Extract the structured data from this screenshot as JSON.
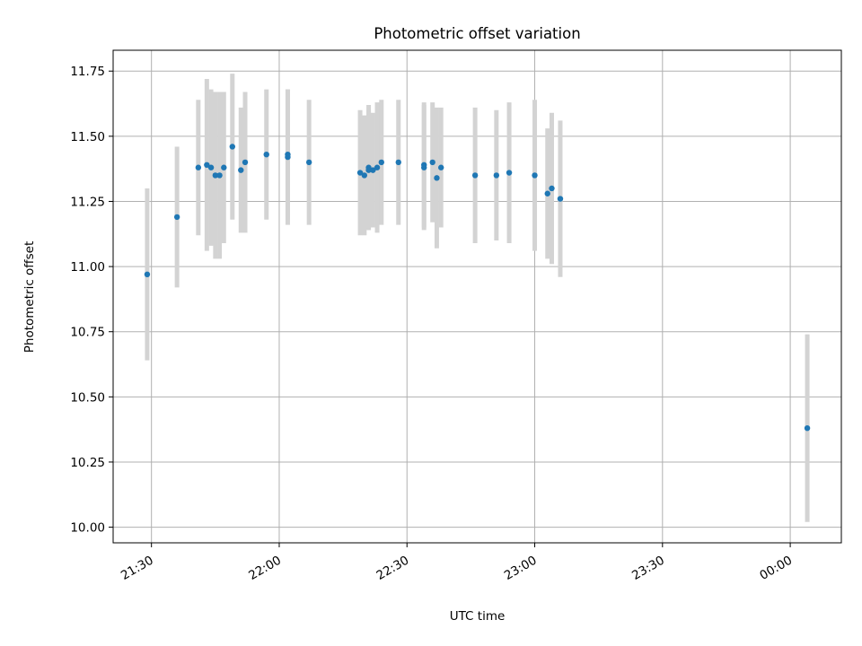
{
  "chart_data": {
    "type": "scatter",
    "title": "Photometric offset variation",
    "xlabel": "UTC time",
    "ylabel": "Photometric offset",
    "x_ticks": [
      "21:30",
      "22:00",
      "22:30",
      "23:00",
      "23:30",
      "00:00"
    ],
    "y_ticks": [
      "10.00",
      "10.25",
      "10.50",
      "10.75",
      "11.00",
      "11.25",
      "11.50",
      "11.75"
    ],
    "xlim": [
      "21:21",
      "00:12"
    ],
    "ylim": [
      9.94,
      11.83
    ],
    "grid": true,
    "colors": {
      "points": "#1f77b4",
      "errorbars": "#d3d3d3",
      "grid": "#b0b0b0"
    },
    "points": [
      {
        "time": "21:29",
        "y": 10.97,
        "err": 0.33
      },
      {
        "time": "21:36",
        "y": 11.19,
        "err": 0.27
      },
      {
        "time": "21:41",
        "y": 11.38,
        "err": 0.26
      },
      {
        "time": "21:43",
        "y": 11.39,
        "err": 0.33
      },
      {
        "time": "21:44",
        "y": 11.38,
        "err": 0.3
      },
      {
        "time": "21:45",
        "y": 11.35,
        "err": 0.32
      },
      {
        "time": "21:46",
        "y": 11.35,
        "err": 0.32
      },
      {
        "time": "21:47",
        "y": 11.38,
        "err": 0.29
      },
      {
        "time": "21:49",
        "y": 11.46,
        "err": 0.28
      },
      {
        "time": "21:51",
        "y": 11.37,
        "err": 0.24
      },
      {
        "time": "21:52",
        "y": 11.4,
        "err": 0.27
      },
      {
        "time": "21:57",
        "y": 11.43,
        "err": 0.25
      },
      {
        "time": "22:02",
        "y": 11.43,
        "err": 0.25
      },
      {
        "time": "22:02",
        "y": 11.42,
        "err": 0.26
      },
      {
        "time": "22:07",
        "y": 11.4,
        "err": 0.24
      },
      {
        "time": "22:19",
        "y": 11.36,
        "err": 0.24
      },
      {
        "time": "22:20",
        "y": 11.35,
        "err": 0.23
      },
      {
        "time": "22:21",
        "y": 11.38,
        "err": 0.24
      },
      {
        "time": "22:21",
        "y": 11.37,
        "err": 0.23
      },
      {
        "time": "22:22",
        "y": 11.37,
        "err": 0.22
      },
      {
        "time": "22:23",
        "y": 11.38,
        "err": 0.25
      },
      {
        "time": "22:24",
        "y": 11.4,
        "err": 0.24
      },
      {
        "time": "22:28",
        "y": 11.4,
        "err": 0.24
      },
      {
        "time": "22:34",
        "y": 11.39,
        "err": 0.24
      },
      {
        "time": "22:34",
        "y": 11.38,
        "err": 0.24
      },
      {
        "time": "22:36",
        "y": 11.4,
        "err": 0.23
      },
      {
        "time": "22:37",
        "y": 11.34,
        "err": 0.27
      },
      {
        "time": "22:38",
        "y": 11.38,
        "err": 0.23
      },
      {
        "time": "22:46",
        "y": 11.35,
        "err": 0.26
      },
      {
        "time": "22:51",
        "y": 11.35,
        "err": 0.25
      },
      {
        "time": "22:54",
        "y": 11.36,
        "err": 0.27
      },
      {
        "time": "23:00",
        "y": 11.35,
        "err": 0.29
      },
      {
        "time": "23:03",
        "y": 11.28,
        "err": 0.25
      },
      {
        "time": "23:04",
        "y": 11.3,
        "err": 0.29
      },
      {
        "time": "23:06",
        "y": 11.26,
        "err": 0.3
      },
      {
        "time": "00:04",
        "y": 10.38,
        "err": 0.36
      }
    ]
  }
}
